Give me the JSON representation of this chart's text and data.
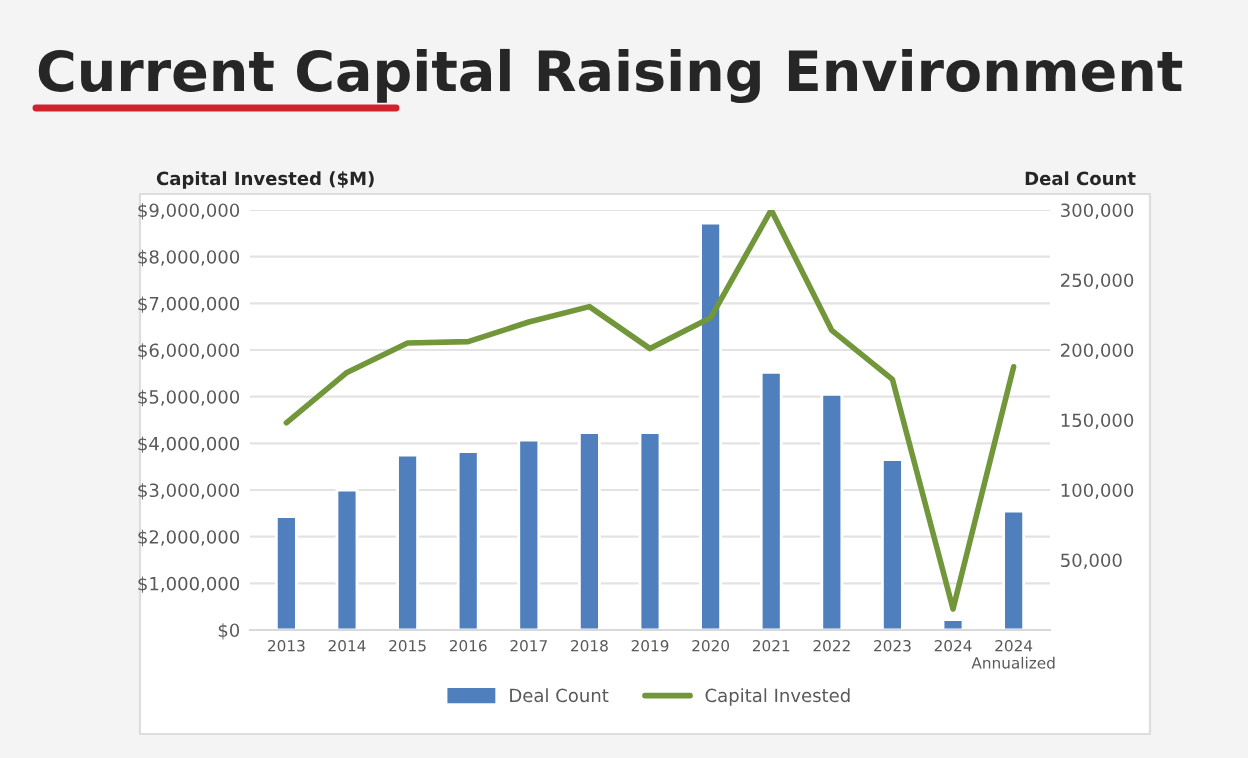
{
  "chart_data": {
    "type": "bar",
    "title": "Current Capital Raising Environment",
    "ylabel": "Capital Invested ($M)",
    "y2label": "Deal Count",
    "categories": [
      "2013",
      "2014",
      "2015",
      "2016",
      "2017",
      "2018",
      "2019",
      "2020",
      "2021",
      "2022",
      "2023",
      "2024",
      "2024\nAnnualized"
    ],
    "series": [
      {
        "name": "Deal Count",
        "color": "#4f7fbd",
        "values": [
          2430000,
          3000000,
          3750000,
          3820000,
          4070000,
          4230000,
          4230000,
          8720000,
          5520000,
          5050000,
          3650000,
          220000,
          2550000
        ]
      },
      {
        "name": "Capital Invested",
        "type": "line",
        "axis": "y2",
        "color": "#72973a",
        "values": [
          148000,
          184000,
          205000,
          206000,
          220000,
          231000,
          201000,
          223000,
          300000,
          214000,
          179000,
          15000,
          188000
        ]
      }
    ],
    "ylim": [
      0,
      9000000
    ],
    "yticks": [
      {
        "value": 0,
        "label": "$0"
      },
      {
        "value": 1000000,
        "label": "$1,000,000"
      },
      {
        "value": 2000000,
        "label": "$2,000,000"
      },
      {
        "value": 3000000,
        "label": "$3,000,000"
      },
      {
        "value": 4000000,
        "label": "$4,000,000"
      },
      {
        "value": 5000000,
        "label": "$5,000,000"
      },
      {
        "value": 6000000,
        "label": "$6,000,000"
      },
      {
        "value": 7000000,
        "label": "$7,000,000"
      },
      {
        "value": 8000000,
        "label": "$8,000,000"
      },
      {
        "value": 9000000,
        "label": "$9,000,000"
      }
    ],
    "y2lim": [
      0,
      300000
    ],
    "y2ticks": [
      {
        "value": 50000,
        "label": "50,000"
      },
      {
        "value": 100000,
        "label": "100,000"
      },
      {
        "value": 150000,
        "label": "150,000"
      },
      {
        "value": 200000,
        "label": "200,000"
      },
      {
        "value": 250000,
        "label": "250,000"
      },
      {
        "value": 300000,
        "label": "300,000"
      }
    ],
    "grid": "y",
    "legend": "bottom"
  }
}
